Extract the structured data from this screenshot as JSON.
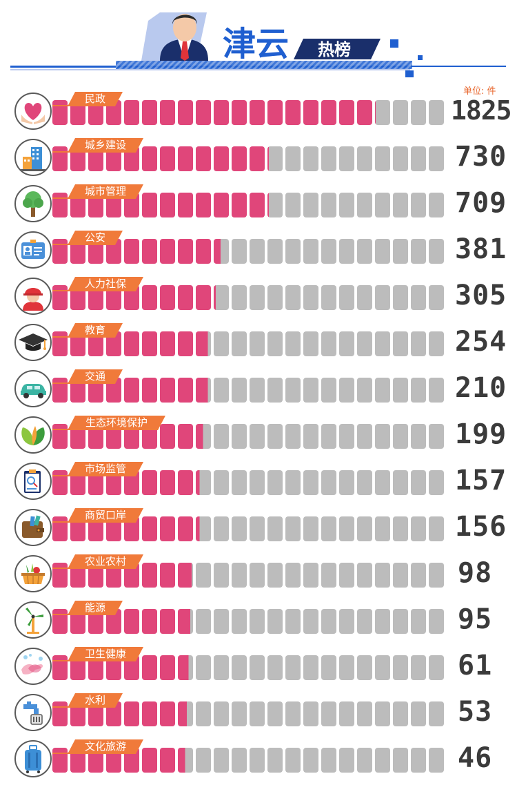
{
  "header": {
    "title_main": "津云",
    "title_sub": "热榜",
    "unit": "单位: 件",
    "colors": {
      "blue": "#1f5fd0",
      "navy": "#1a2f6b",
      "light_blue": "#b9c9ee"
    },
    "mascot_icon": "businessman-icon"
  },
  "chart_data": {
    "type": "bar",
    "orientation": "horizontal",
    "unit": "件",
    "segments_per_bar": 22,
    "categories": [
      "民政",
      "城乡建设",
      "城市管理",
      "公安",
      "人力社保",
      "教育",
      "交通",
      "生态环境保护",
      "市场监管",
      "商贸口岸",
      "农业农村",
      "能源",
      "卫生健康",
      "水利",
      "文化旅游"
    ],
    "values": [
      1825,
      730,
      709,
      381,
      305,
      254,
      210,
      199,
      157,
      156,
      98,
      95,
      61,
      53,
      46
    ],
    "fill_fraction": [
      0.82,
      0.55,
      0.55,
      0.43,
      0.415,
      0.4,
      0.4,
      0.385,
      0.375,
      0.375,
      0.36,
      0.355,
      0.35,
      0.345,
      0.34
    ],
    "value_labels": [
      "1825",
      "730",
      "709",
      "381",
      "305",
      "254",
      "210",
      "199",
      "157",
      "156",
      "98",
      "95",
      "61",
      "53",
      "46"
    ],
    "icons": [
      "heart-hands-icon",
      "building-icon",
      "tree-icon",
      "police-badge-icon",
      "worker-helmet-icon",
      "graduation-cap-icon",
      "car-icon",
      "leaves-icon",
      "inspection-clipboard-icon",
      "wallet-icon",
      "vegetable-basket-icon",
      "wind-turbine-icon",
      "hand-washing-icon",
      "water-tap-icon",
      "luggage-icon"
    ],
    "colors": {
      "filled": "#e0467a",
      "empty": "#bcbcbc",
      "tag": "#f07a3a",
      "value_text": "#3b3b3b"
    }
  }
}
